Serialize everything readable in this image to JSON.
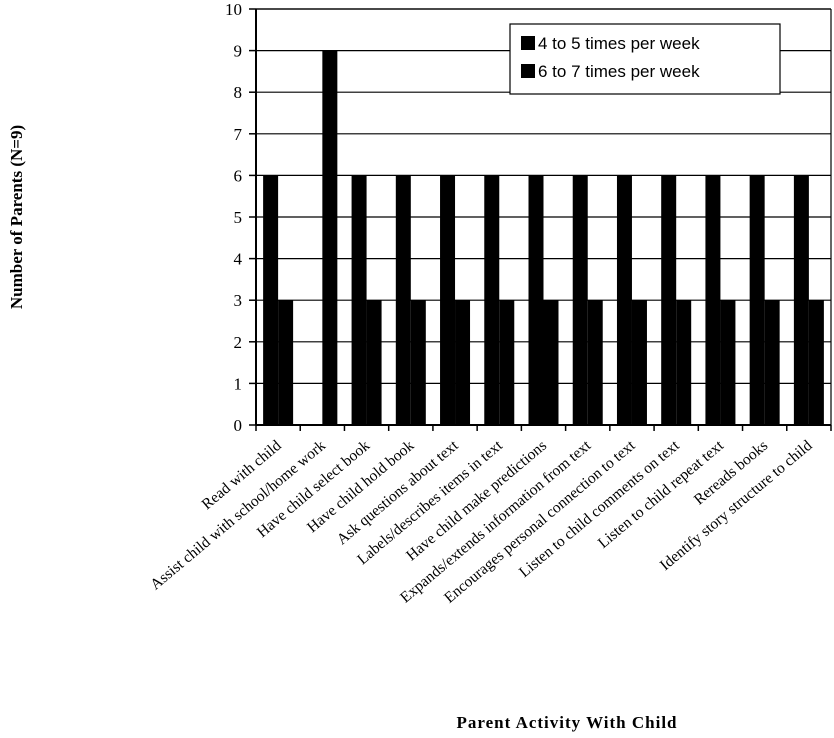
{
  "chart_data": {
    "type": "bar",
    "title": "",
    "xlabel": "Parent Activity With Child",
    "ylabel": "Number of Parents (N=9)",
    "ylim": [
      0,
      10
    ],
    "yticks": [
      0,
      1,
      2,
      3,
      4,
      5,
      6,
      7,
      8,
      9,
      10
    ],
    "grid": true,
    "legend_position": "top-right",
    "categories": [
      "Read with child",
      "Assist child with school/home work",
      "Have child select book",
      "Have child hold book",
      "Ask questions about text",
      "Labels/describes items in text",
      "Have child make predictions",
      "Expands/extends information from text",
      "Encourages personal connection to text",
      "Listen to child comments on text",
      "Listen to child repeat text",
      "Rereads books",
      "Identify story structure to child"
    ],
    "series": [
      {
        "name": "4 to 5 times per week",
        "values": [
          6,
          0,
          6,
          6,
          6,
          6,
          6,
          6,
          6,
          6,
          6,
          6,
          6
        ]
      },
      {
        "name": "6 to 7 times per week",
        "values": [
          3,
          9,
          3,
          3,
          3,
          3,
          3,
          3,
          3,
          3,
          3,
          3,
          3
        ]
      }
    ],
    "colors": {
      "bars": "#000000",
      "axis": "#000000",
      "grid": "#000000",
      "background": "#ffffff"
    }
  }
}
